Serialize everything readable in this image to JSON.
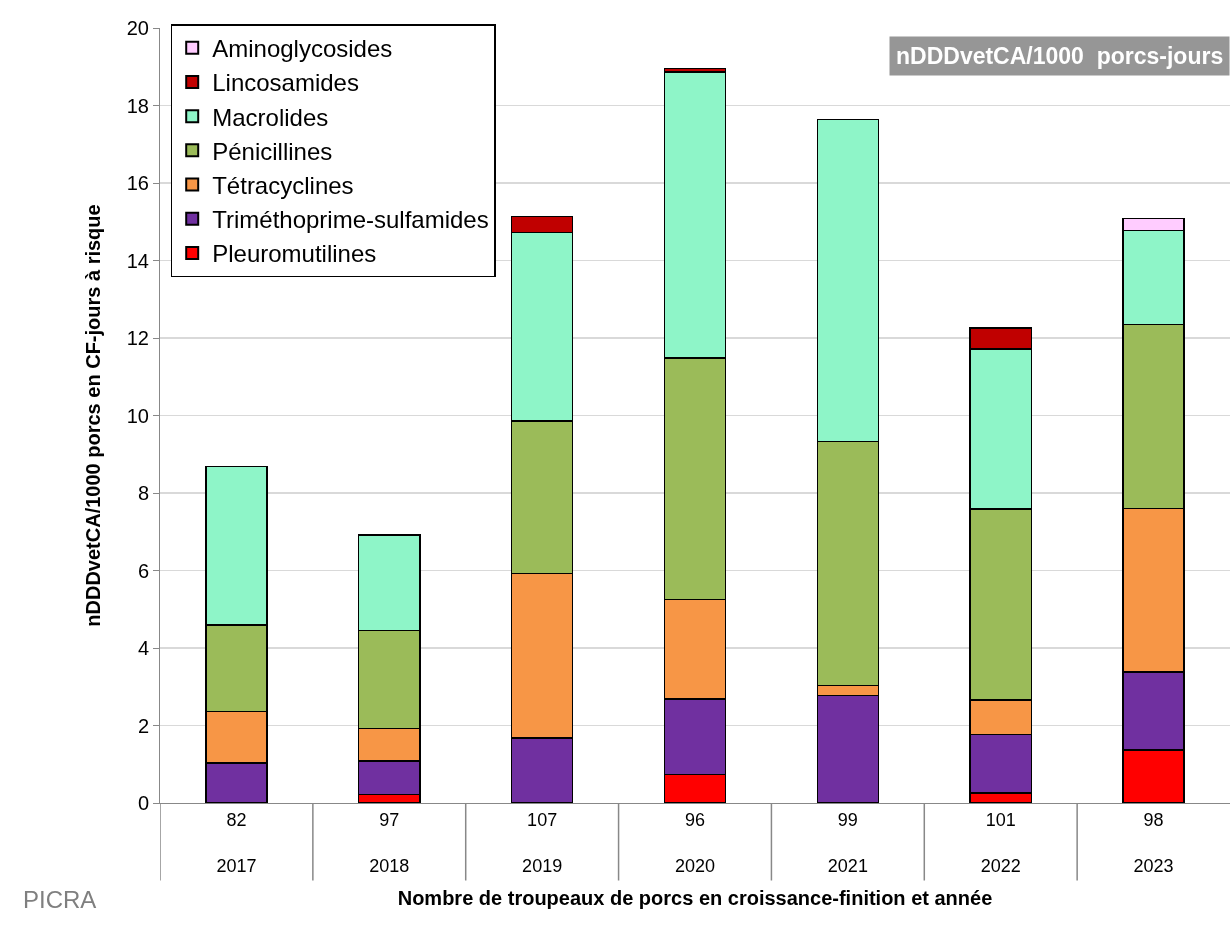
{
  "chart_data": {
    "type": "bar",
    "stacked": true,
    "xlabel": "Nombre de troupeaux de porcs en croissance-finition et année",
    "ylabel": "nDDDvetCA/1000 porcs en CF-jours à risque",
    "categories": [
      "82\n2017",
      "97\n2018",
      "107\n2019",
      "96\n2020",
      "99\n2021",
      "101\n2022",
      "98\n2023"
    ],
    "series": [
      {
        "name": "Pleuromutilines",
        "color": "#ff0000",
        "values": [
          null,
          0.22,
          null,
          0.73,
          null,
          0.26,
          1.37
        ]
      },
      {
        "name": "Triméthoprime-sulfamides",
        "color": "#7030a0",
        "values": [
          1.03,
          0.87,
          1.68,
          1.95,
          2.77,
          1.51,
          2.01
        ]
      },
      {
        "name": "Tétracyclines",
        "color": "#f79646",
        "values": [
          1.33,
          0.83,
          4.24,
          2.57,
          0.26,
          0.89,
          4.22
        ]
      },
      {
        "name": "Pénicillines",
        "color": "#9bbb59",
        "values": [
          2.24,
          2.53,
          3.94,
          6.23,
          6.3,
          4.93,
          4.75
        ]
      },
      {
        "name": "Macrolides",
        "color": "#8ef5c8",
        "values": [
          4.09,
          2.46,
          4.86,
          7.38,
          8.31,
          4.12,
          2.43
        ]
      },
      {
        "name": "Lincosamides",
        "color": "#c00000",
        "values": [
          null,
          null,
          0.41,
          0.1,
          null,
          0.55,
          null
        ]
      },
      {
        "name": "Aminoglycosides",
        "color": "#ffccff",
        "values": [
          null,
          null,
          null,
          null,
          null,
          null,
          0.3
        ]
      }
    ],
    "ylim": [
      0,
      20
    ],
    "yticks": [
      0,
      2,
      4,
      6,
      8,
      10,
      12,
      14,
      16,
      18,
      20
    ],
    "grid": "y",
    "legend": "top left",
    "annotations": [
      "nDDDvetCA/1000  porcs-jours",
      "PICRA"
    ]
  }
}
